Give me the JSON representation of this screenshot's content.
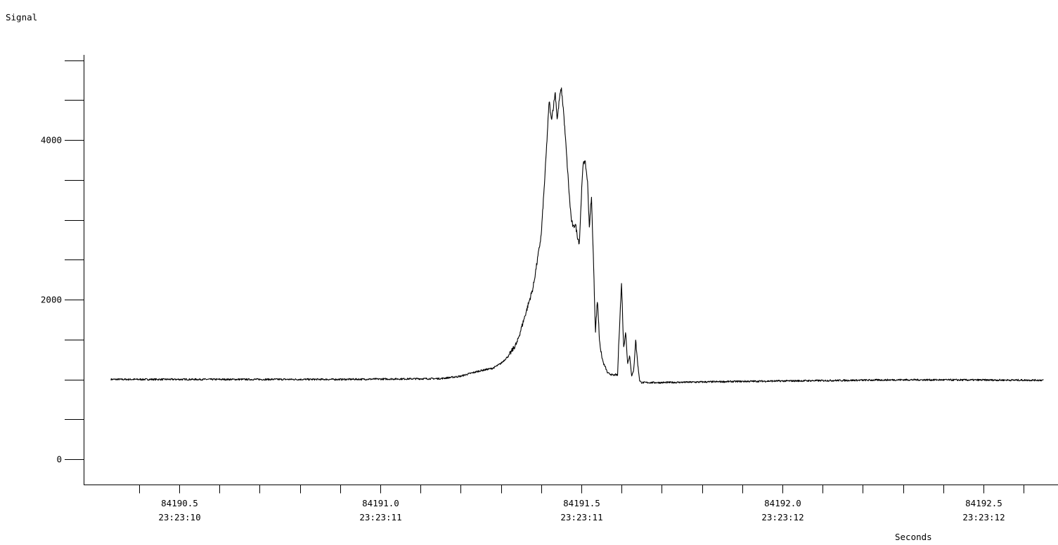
{
  "chart_data": {
    "type": "line",
    "title": "",
    "ylabel": "Signal",
    "xlabel": "Seconds",
    "xlim": [
      84190.3,
      84192.65
    ],
    "ylim": [
      -160,
      5000
    ],
    "y_ticks": [
      {
        "value": 0,
        "label": "0"
      },
      {
        "value": 2000,
        "label": "2000"
      },
      {
        "value": 4000,
        "label": "4000"
      }
    ],
    "y_minor_step": 500,
    "x_minor_step": 0.1,
    "x_ticks": [
      {
        "value": 84190.5,
        "label": "84190.5",
        "time": "23:23:10"
      },
      {
        "value": 84191.0,
        "label": "84191.0",
        "time": "23:23:11"
      },
      {
        "value": 84191.5,
        "label": "84191.5",
        "time": "23:23:11"
      },
      {
        "value": 84192.0,
        "label": "84192.0",
        "time": "23:23:12"
      },
      {
        "value": 84192.5,
        "label": "84192.5",
        "time": "23:23:12"
      }
    ],
    "grid": false,
    "series": [
      {
        "x": [
          84190.33,
          84190.6,
          84190.9,
          84191.15,
          84191.2,
          84191.22,
          84191.25,
          84191.28,
          84191.3,
          84191.32,
          84191.34,
          84191.36,
          84191.38,
          84191.4,
          84191.41,
          84191.42,
          84191.425,
          84191.43,
          84191.435,
          84191.44,
          84191.445,
          84191.45,
          84191.455,
          84191.46,
          84191.47,
          84191.475,
          84191.48,
          84191.485,
          84191.49,
          84191.495,
          84191.5,
          84191.505,
          84191.51,
          84191.515,
          84191.52,
          84191.525,
          84191.53,
          84191.535,
          84191.54,
          84191.545,
          84191.55,
          84191.555,
          84191.56,
          84191.565,
          84191.57,
          84191.575,
          84191.58,
          84191.585,
          84191.59,
          84191.595,
          84191.6,
          84191.605,
          84191.61,
          84191.615,
          84191.62,
          84191.625,
          84191.63,
          84191.635,
          84191.64,
          84191.645,
          84191.65,
          84191.7,
          84191.9,
          84192.3,
          84192.65
        ],
        "y": [
          1000,
          1000,
          1000,
          1010,
          1040,
          1070,
          1110,
          1140,
          1200,
          1300,
          1460,
          1800,
          2150,
          2800,
          3600,
          4500,
          4250,
          4400,
          4600,
          4250,
          4500,
          4650,
          4400,
          4050,
          3300,
          3000,
          2900,
          2950,
          2800,
          2700,
          3300,
          3750,
          3700,
          3500,
          2900,
          3300,
          2500,
          1600,
          2000,
          1500,
          1300,
          1200,
          1150,
          1080,
          1070,
          1060,
          1050,
          1060,
          1050,
          1700,
          2200,
          1400,
          1600,
          1200,
          1300,
          1050,
          1100,
          1500,
          1200,
          980,
          960,
          960,
          975,
          995,
          990
        ]
      }
    ]
  }
}
